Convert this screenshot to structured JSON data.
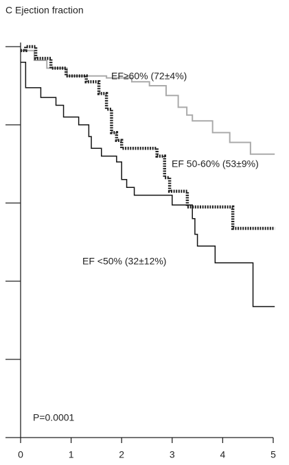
{
  "chart_data": {
    "type": "step",
    "title": "C Ejection fraction",
    "annotation": "P=0.0001",
    "xlim": [
      0,
      5
    ],
    "xticks": [
      0,
      1,
      2,
      3,
      4,
      5
    ],
    "ylim": [
      0,
      1
    ],
    "yticks": [
      0,
      0.2,
      0.4,
      0.6,
      0.8,
      1
    ],
    "series": [
      {
        "name": "EF≥60% (72±4%)",
        "color": "#aaaaaa",
        "style": "solid",
        "x": [
          0,
          0.27,
          0.52,
          0.92,
          1.7,
          2.2,
          2.55,
          2.88,
          3.12,
          3.29,
          3.4,
          3.8,
          4.14,
          4.55,
          5.03
        ],
        "values": [
          0.99,
          0.965,
          0.945,
          0.925,
          0.92,
          0.91,
          0.9,
          0.875,
          0.845,
          0.825,
          0.81,
          0.78,
          0.755,
          0.725,
          0.725
        ]
      },
      {
        "name": "EF 50-60% (53±9%)",
        "color": "#222222",
        "style": "dotted",
        "x": [
          0,
          0.1,
          0.3,
          0.6,
          0.9,
          1.3,
          1.55,
          1.7,
          1.8,
          1.9,
          2.0,
          2.7,
          2.85,
          2.95,
          3.3,
          4.2,
          5.03
        ],
        "values": [
          0.99,
          1.0,
          0.97,
          0.945,
          0.925,
          0.91,
          0.88,
          0.84,
          0.78,
          0.76,
          0.74,
          0.72,
          0.665,
          0.63,
          0.59,
          0.535,
          0.535
        ]
      },
      {
        "name": "EF <50% (32±12%)",
        "color": "#111111",
        "style": "solid",
        "x": [
          0,
          0.1,
          0.4,
          0.7,
          0.85,
          1.15,
          1.35,
          1.4,
          1.6,
          1.9,
          2.0,
          2.1,
          2.25,
          3.0,
          3.4,
          3.45,
          3.5,
          3.85,
          4.6,
          5.03
        ],
        "values": [
          0.96,
          0.895,
          0.87,
          0.85,
          0.82,
          0.8,
          0.77,
          0.74,
          0.72,
          0.705,
          0.66,
          0.64,
          0.62,
          0.595,
          0.56,
          0.52,
          0.49,
          0.447,
          0.335,
          0.335
        ]
      }
    ]
  }
}
